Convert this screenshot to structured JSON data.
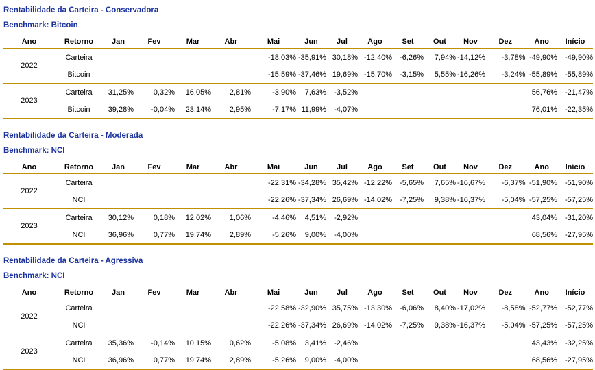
{
  "colors": {
    "title_blue": "#1c339e",
    "line_gold": "#bf9000",
    "divider_black": "#000000"
  },
  "columns": [
    "Ano",
    "Retorno",
    "Jan",
    "Fev",
    "Mar",
    "Abr",
    "Mai",
    "Jun",
    "Jul",
    "Ago",
    "Set",
    "Out",
    "Nov",
    "Dez",
    "Ano",
    "Início"
  ],
  "sections": [
    {
      "title": "Rentabilidade da Carteira - Conservadora",
      "benchmark_label": "Benchmark: Bitcoin",
      "groups": [
        {
          "year": "2022",
          "rows": [
            {
              "label": "Carteira",
              "months": [
                "",
                "",
                "",
                "",
                "-18,03%",
                "-35,91%",
                "30,18%",
                "-12,40%",
                "-6,26%",
                "7,94%",
                "-14,12%",
                "-3,78%"
              ],
              "year_total": "-49,90%",
              "inception": "-49,90%"
            },
            {
              "label": "Bitcoin",
              "months": [
                "",
                "",
                "",
                "",
                "-15,59%",
                "-37,46%",
                "19,69%",
                "-15,70%",
                "-3,15%",
                "5,55%",
                "-16,26%",
                "-3,24%"
              ],
              "year_total": "-55,89%",
              "inception": "-55,89%"
            }
          ]
        },
        {
          "year": "2023",
          "rows": [
            {
              "label": "Carteira",
              "months": [
                "31,25%",
                "0,32%",
                "16,05%",
                "2,81%",
                "-3,90%",
                "7,63%",
                "-3,52%",
                "",
                "",
                "",
                "",
                ""
              ],
              "year_total": "56,76%",
              "inception": "-21,47%"
            },
            {
              "label": "Bitcoin",
              "months": [
                "39,28%",
                "-0,04%",
                "23,14%",
                "2,95%",
                "-7,17%",
                "11,99%",
                "-4,07%",
                "",
                "",
                "",
                "",
                ""
              ],
              "year_total": "76,01%",
              "inception": "-22,35%"
            }
          ]
        }
      ]
    },
    {
      "title": "Rentabilidade da Carteira - Moderada",
      "benchmark_label": "Benchmark: NCI",
      "groups": [
        {
          "year": "2022",
          "rows": [
            {
              "label": "Carteira",
              "months": [
                "",
                "",
                "",
                "",
                "-22,31%",
                "-34,28%",
                "35,42%",
                "-12,22%",
                "-5,65%",
                "7,65%",
                "-16,67%",
                "-6,37%"
              ],
              "year_total": "-51,90%",
              "inception": "-51,90%"
            },
            {
              "label": "NCI",
              "months": [
                "",
                "",
                "",
                "",
                "-22,26%",
                "-37,34%",
                "26,69%",
                "-14,02%",
                "-7,25%",
                "9,38%",
                "-16,37%",
                "-5,04%"
              ],
              "year_total": "-57,25%",
              "inception": "-57,25%"
            }
          ]
        },
        {
          "year": "2023",
          "rows": [
            {
              "label": "Carteira",
              "months": [
                "30,12%",
                "0,18%",
                "12,02%",
                "1,06%",
                "-4,46%",
                "4,51%",
                "-2,92%",
                "",
                "",
                "",
                "",
                ""
              ],
              "year_total": "43,04%",
              "inception": "-31,20%"
            },
            {
              "label": "NCI",
              "months": [
                "36,96%",
                "0,77%",
                "19,74%",
                "2,89%",
                "-5,26%",
                "9,00%",
                "-4,00%",
                "",
                "",
                "",
                "",
                ""
              ],
              "year_total": "68,56%",
              "inception": "-27,95%"
            }
          ]
        }
      ]
    },
    {
      "title": "Rentabilidade da Carteira - Agressiva",
      "benchmark_label": "Benchmark: NCI",
      "groups": [
        {
          "year": "2022",
          "rows": [
            {
              "label": "Carteira",
              "months": [
                "",
                "",
                "",
                "",
                "-22,58%",
                "-32,90%",
                "35,75%",
                "-13,30%",
                "-6,06%",
                "8,40%",
                "-17,02%",
                "-8,58%"
              ],
              "year_total": "-52,77%",
              "inception": "-52,77%"
            },
            {
              "label": "NCI",
              "months": [
                "",
                "",
                "",
                "",
                "-22,26%",
                "-37,34%",
                "26,69%",
                "-14,02%",
                "-7,25%",
                "9,38%",
                "-16,37%",
                "-5,04%"
              ],
              "year_total": "-57,25%",
              "inception": "-57,25%"
            }
          ]
        },
        {
          "year": "2023",
          "rows": [
            {
              "label": "Carteira",
              "months": [
                "35,36%",
                "-0,14%",
                "10,15%",
                "0,62%",
                "-5,08%",
                "3,41%",
                "-2,46%",
                "",
                "",
                "",
                "",
                ""
              ],
              "year_total": "43,43%",
              "inception": "-32,25%"
            },
            {
              "label": "NCI",
              "months": [
                "36,96%",
                "0,77%",
                "19,74%",
                "2,89%",
                "-5,26%",
                "9,00%",
                "-4,00%",
                "",
                "",
                "",
                "",
                ""
              ],
              "year_total": "68,56%",
              "inception": "-27,95%"
            }
          ]
        }
      ]
    }
  ]
}
